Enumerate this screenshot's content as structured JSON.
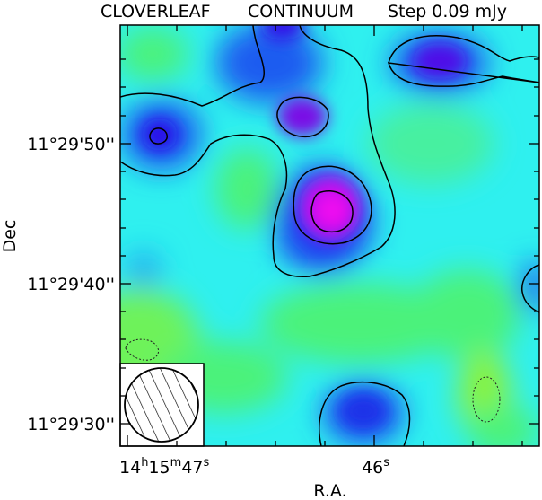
{
  "title": {
    "source": "CLOVERLEAF",
    "band": "CONTINUUM",
    "step": "Step 0.09 mJy"
  },
  "axes": {
    "xlabel": "R.A.",
    "ylabel": "Dec",
    "x_ticks": [
      {
        "h": "14",
        "m": "15",
        "s": "47"
      },
      {
        "h": "",
        "m": "",
        "s": "46"
      }
    ],
    "y_ticks": [
      "11°29'50''",
      "11°29'40''",
      "11°29'30''"
    ]
  },
  "colors": {
    "background": "#2ff0ef",
    "green": "#4cf27a",
    "lime": "#a8f23a",
    "blue": "#1f5cf0",
    "deep_blue": "#2a10e8",
    "violet": "#7a10e6",
    "magenta": "#f010f0",
    "contour": "#000000"
  },
  "beam": {
    "shape": "hatched-circle",
    "position": "bottom-left"
  }
}
